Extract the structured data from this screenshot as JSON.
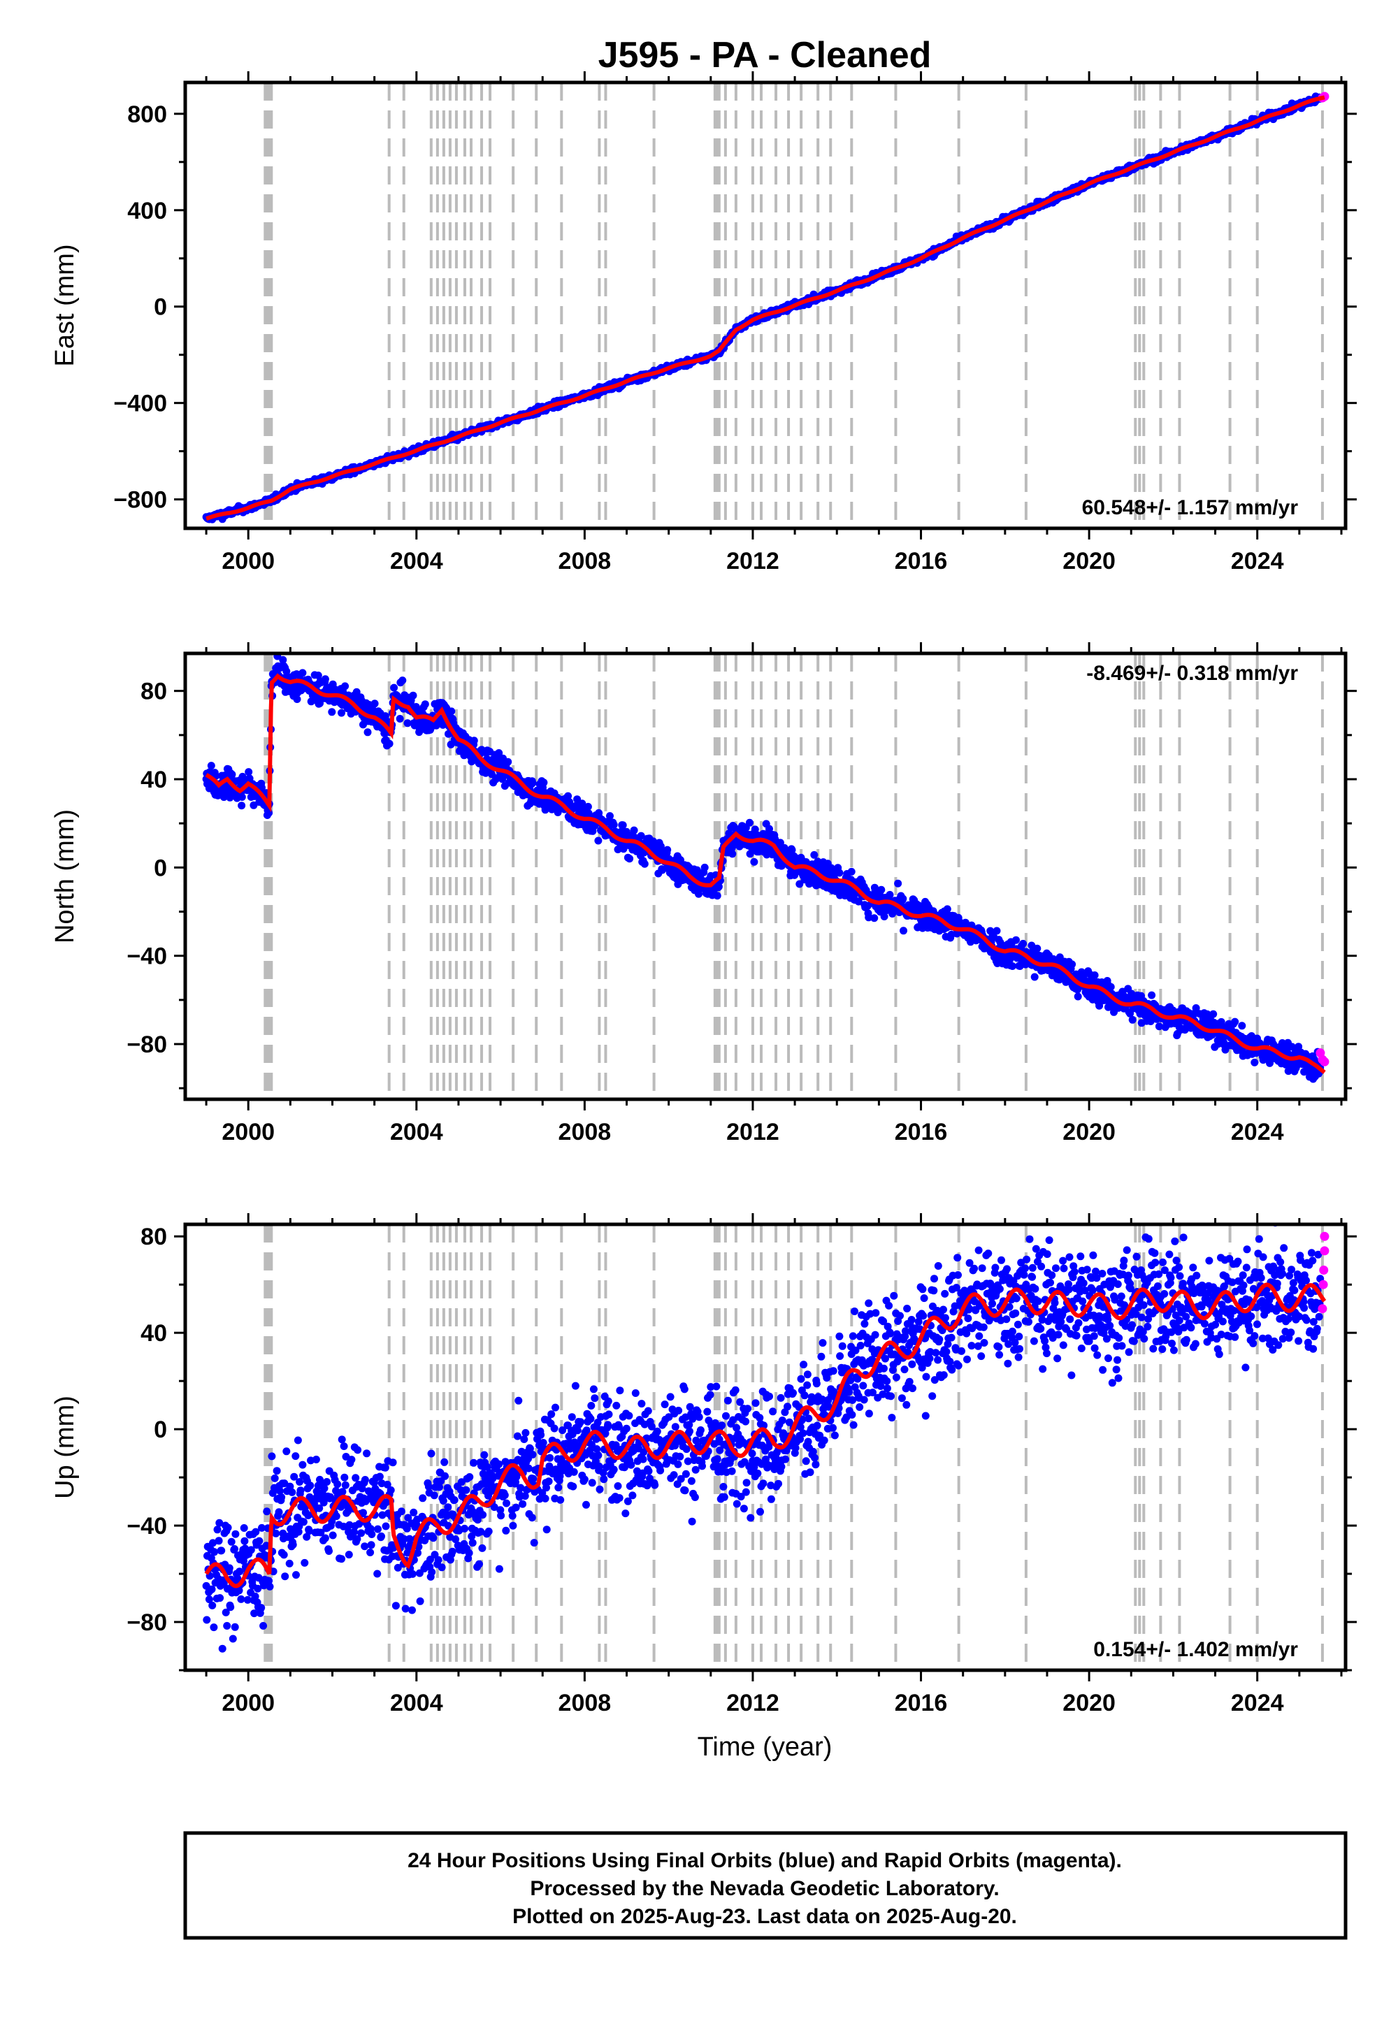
{
  "title": "J595  - PA - Cleaned",
  "xlabel": "Time (year)",
  "footer": {
    "line1": "24 Hour Positions Using Final Orbits (blue) and Rapid Orbits (magenta).",
    "line2": "Processed by the Nevada Geodetic Laboratory.",
    "line3": "Plotted on 2025-Aug-23. Last data on 2025-Aug-20."
  },
  "colors": {
    "final_orbits": "#0000ff",
    "rapid_orbits": "#ff00ff",
    "model_fit": "#ff0000",
    "equipment_change_lines": "#bbbbbb"
  },
  "chart_data": [
    {
      "type": "scatter",
      "name": "east",
      "ylabel": "East (mm)",
      "rate_label": "60.548+/- 1.157 mm/yr",
      "rate_label_position": "bottom-right",
      "xlim": [
        1998.5,
        2026.1
      ],
      "ylim": [
        -920,
        930
      ],
      "yticks": [
        -800,
        -400,
        0,
        400,
        800
      ],
      "xticks": [
        2000,
        2004,
        2008,
        2012,
        2016,
        2020,
        2024
      ],
      "series": [
        {
          "x": [
            1999.0,
            2000.0,
            2000.55,
            2001.0,
            2002.0,
            2003.0,
            2004.0,
            2005.0,
            2006.0,
            2007.0,
            2008.0,
            2009.0,
            2010.0,
            2011.0,
            2011.2,
            2011.6,
            2012.0,
            2013.0,
            2014.0,
            2015.0,
            2016.0,
            2017.0,
            2018.0,
            2019.0,
            2020.0,
            2021.0,
            2022.0,
            2023.0,
            2024.0,
            2025.0,
            2025.6
          ],
          "y": [
            -880,
            -835,
            -805,
            -758,
            -705,
            -652,
            -597,
            -540,
            -482,
            -425,
            -370,
            -310,
            -255,
            -205,
            -185,
            -95,
            -55,
            5,
            65,
            130,
            200,
            285,
            360,
            435,
            510,
            575,
            640,
            705,
            770,
            835,
            870
          ]
        }
      ],
      "scatter_spread": 8,
      "rapid_orbits": {
        "x": [
          2025.55,
          2025.6
        ],
        "y": [
          866,
          872
        ]
      }
    },
    {
      "type": "scatter",
      "name": "north",
      "ylabel": "North (mm)",
      "rate_label": "-8.469+/- 0.318 mm/yr",
      "rate_label_position": "top-right",
      "xlim": [
        1998.5,
        2026.1
      ],
      "ylim": [
        -105,
        97
      ],
      "yticks": [
        -80,
        -40,
        0,
        40,
        80
      ],
      "xticks": [
        2000,
        2004,
        2008,
        2012,
        2016,
        2020,
        2024
      ],
      "series": [
        {
          "x": [
            1999.0,
            1999.3,
            1999.5,
            1999.8,
            2000.0,
            2000.3,
            2000.5,
            2000.55,
            2000.7,
            2001.0,
            2001.5,
            2002.0,
            2002.5,
            2003.0,
            2003.4,
            2003.45,
            2003.8,
            2004.0,
            2004.4,
            2004.6,
            2005.0,
            2005.5,
            2006.0,
            2006.5,
            2007.0,
            2007.5,
            2008.0,
            2008.5,
            2009.0,
            2009.5,
            2010.0,
            2010.5,
            2011.0,
            2011.2,
            2011.3,
            2011.6,
            2012.0,
            2012.5,
            2013.0,
            2013.5,
            2014.0,
            2014.5,
            2015.0,
            2015.5,
            2016.0,
            2016.5,
            2017.0,
            2017.5,
            2018.0,
            2018.5,
            2019.0,
            2019.5,
            2020.0,
            2020.5,
            2021.0,
            2021.5,
            2022.0,
            2022.5,
            2023.0,
            2023.5,
            2024.0,
            2024.5,
            2025.0,
            2025.3,
            2025.6
          ],
          "y": [
            42,
            36,
            40,
            36,
            38,
            32,
            28,
            84,
            88,
            84,
            82,
            78,
            74,
            68,
            60,
            76,
            74,
            68,
            66,
            72,
            58,
            50,
            44,
            38,
            32,
            28,
            22,
            18,
            12,
            8,
            2,
            -4,
            -8,
            -6,
            8,
            16,
            12,
            10,
            0,
            -2,
            -6,
            -10,
            -16,
            -18,
            -22,
            -24,
            -28,
            -32,
            -38,
            -40,
            -44,
            -48,
            -54,
            -58,
            -62,
            -64,
            -68,
            -70,
            -74,
            -78,
            -82,
            -84,
            -86,
            -90,
            -92
          ]
        }
      ],
      "scatter_spread": 4,
      "rapid_orbits": {
        "x": [
          2025.5,
          2025.55,
          2025.6
        ],
        "y": [
          -84,
          -87,
          -88
        ]
      }
    },
    {
      "type": "scatter",
      "name": "up",
      "ylabel": "Up (mm)",
      "rate_label": "0.154+/- 1.402 mm/yr",
      "rate_label_position": "bottom-right",
      "xlim": [
        1998.5,
        2026.1
      ],
      "ylim": [
        -100,
        85
      ],
      "yticks": [
        -80,
        -40,
        0,
        40,
        80
      ],
      "xticks": [
        2000,
        2004,
        2008,
        2012,
        2016,
        2020,
        2024
      ],
      "series": [
        {
          "x": [
            1999.0,
            1999.5,
            2000.0,
            2000.5,
            2000.55,
            2001.0,
            2001.5,
            2002.0,
            2002.5,
            2003.0,
            2003.4,
            2003.45,
            2003.8,
            2004.0,
            2004.5,
            2005.0,
            2005.5,
            2006.0,
            2006.5,
            2006.9,
            2007.0,
            2007.5,
            2008.0,
            2008.5,
            2009.0,
            2009.5,
            2010.0,
            2010.5,
            2011.0,
            2011.5,
            2012.0,
            2012.5,
            2013.0,
            2013.5,
            2014.0,
            2014.5,
            2015.0,
            2015.5,
            2016.0,
            2016.5,
            2017.0,
            2017.5,
            2018.0,
            2018.5,
            2019.0,
            2019.5,
            2020.0,
            2020.5,
            2021.0,
            2021.5,
            2022.0,
            2022.5,
            2023.0,
            2023.5,
            2024.0,
            2024.5,
            2025.0,
            2025.6
          ],
          "y": [
            -60,
            -62,
            -58,
            -60,
            -35,
            -34,
            -33,
            -34,
            -32,
            -34,
            -32,
            -45,
            -52,
            -45,
            -40,
            -36,
            -30,
            -22,
            -18,
            -20,
            -12,
            -10,
            -6,
            -6,
            -8,
            -8,
            -6,
            -6,
            -4,
            -8,
            -4,
            -6,
            2,
            6,
            12,
            24,
            30,
            32,
            38,
            44,
            50,
            52,
            52,
            54,
            52,
            52,
            52,
            50,
            52,
            54,
            54,
            50,
            52,
            52,
            56,
            54,
            54,
            56
          ]
        }
      ],
      "scatter_spread": 14,
      "rapid_orbits": {
        "x": [
          2025.55,
          2025.57,
          2025.58,
          2025.6,
          2025.6
        ],
        "y": [
          50,
          60,
          66,
          74,
          80
        ]
      }
    }
  ],
  "equipment_change_lines_years": [
    2000.4,
    2000.45,
    2000.5,
    2000.55,
    2003.35,
    2003.7,
    2004.35,
    2004.5,
    2004.65,
    2004.8,
    2004.95,
    2005.15,
    2005.3,
    2005.55,
    2005.75,
    2006.3,
    2006.85,
    2007.45,
    2008.35,
    2008.5,
    2009.65,
    2011.1,
    2011.15,
    2011.2,
    2011.35,
    2011.6,
    2012.0,
    2012.2,
    2012.55,
    2012.85,
    2013.15,
    2013.55,
    2013.85,
    2014.35,
    2015.4,
    2016.9,
    2018.5,
    2021.1,
    2021.2,
    2021.3,
    2021.7,
    2022.15,
    2023.35,
    2024.0,
    2025.55
  ]
}
